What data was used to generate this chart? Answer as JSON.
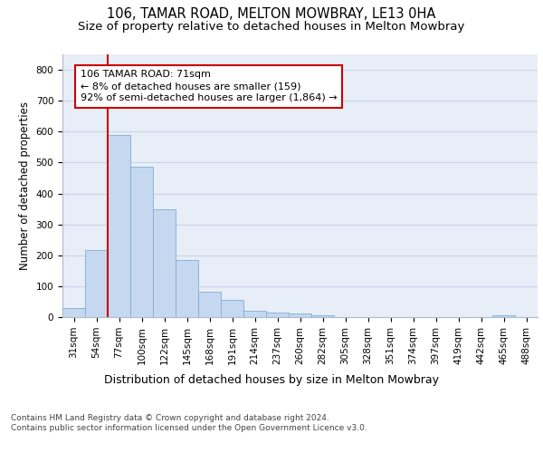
{
  "title1": "106, TAMAR ROAD, MELTON MOWBRAY, LE13 0HA",
  "title2": "Size of property relative to detached houses in Melton Mowbray",
  "xlabel": "Distribution of detached houses by size in Melton Mowbray",
  "ylabel": "Number of detached properties",
  "categories": [
    "31sqm",
    "54sqm",
    "77sqm",
    "100sqm",
    "122sqm",
    "145sqm",
    "168sqm",
    "191sqm",
    "214sqm",
    "237sqm",
    "260sqm",
    "282sqm",
    "305sqm",
    "328sqm",
    "351sqm",
    "374sqm",
    "397sqm",
    "419sqm",
    "442sqm",
    "465sqm",
    "488sqm"
  ],
  "values": [
    30,
    218,
    588,
    488,
    350,
    185,
    83,
    57,
    20,
    15,
    13,
    7,
    1,
    0,
    0,
    0,
    0,
    0,
    0,
    5,
    0
  ],
  "bar_color": "#c5d8f0",
  "bar_edge_color": "#7aafd4",
  "vline_color": "#cc0000",
  "annotation_text": "106 TAMAR ROAD: 71sqm\n← 8% of detached houses are smaller (159)\n92% of semi-detached houses are larger (1,864) →",
  "annotation_box_color": "#ffffff",
  "annotation_box_edge_color": "#cc0000",
  "ylim": [
    0,
    850
  ],
  "yticks": [
    0,
    100,
    200,
    300,
    400,
    500,
    600,
    700,
    800
  ],
  "grid_color": "#c8d4e8",
  "background_color": "#e8eef8",
  "footnote": "Contains HM Land Registry data © Crown copyright and database right 2024.\nContains public sector information licensed under the Open Government Licence v3.0.",
  "title1_fontsize": 10.5,
  "title2_fontsize": 9.5,
  "xlabel_fontsize": 9,
  "ylabel_fontsize": 8.5,
  "tick_fontsize": 7.5,
  "annotation_fontsize": 8,
  "footnote_fontsize": 6.5
}
